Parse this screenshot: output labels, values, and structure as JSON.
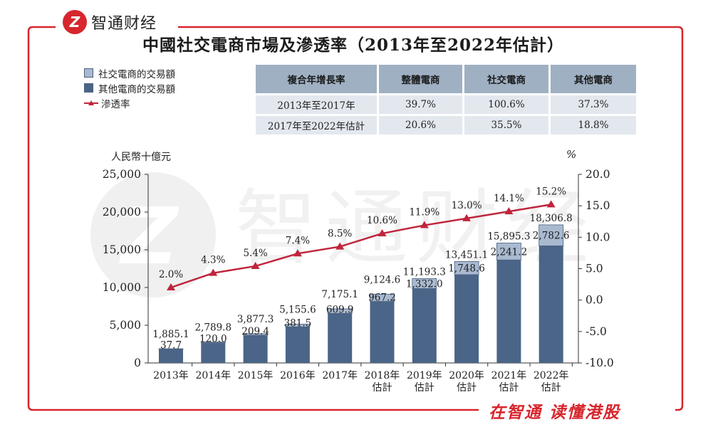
{
  "brand": {
    "logo_text": "Z",
    "name": "智通财经"
  },
  "title": "中國社交電商市場及滲透率（2013年至2022年估計）",
  "slogan": "在智通 读懂港股",
  "legend": [
    {
      "label": "社交電商的交易額",
      "color": "#a9bad0"
    },
    {
      "label": "其他電商的交易額",
      "color": "#4a6587"
    },
    {
      "label": "滲透率",
      "color": "#c0253c"
    }
  ],
  "cagr_table": {
    "headers": [
      "複合年增長率",
      "整體電商",
      "社交電商",
      "其他電商"
    ],
    "rows": [
      [
        "2013年至2017年",
        "39.7%",
        "100.6%",
        "37.3%"
      ],
      [
        "2017年至2022年估計",
        "20.6%",
        "35.5%",
        "18.8%"
      ]
    ]
  },
  "chart_data": {
    "type": "bar",
    "stacked": true,
    "title": "中國社交電商市場及滲透率（2013年至2022年估計）",
    "ylabel": "人民幣十億元",
    "y2label": "%",
    "ylim": [
      0,
      25000
    ],
    "y_ticks": [
      "0",
      "5,000",
      "10,000",
      "15,000",
      "20,000",
      "25,000"
    ],
    "y2lim": [
      -10,
      20
    ],
    "y2_ticks": [
      "-10.0",
      "-5.0",
      "0.0",
      "5.0",
      "10.0",
      "15.0",
      "20.0"
    ],
    "categories": [
      "2013年",
      "2014年",
      "2015年",
      "2016年",
      "2017年",
      "2018年\n估計",
      "2019年\n估計",
      "2020年\n估計",
      "2021年\n估計",
      "2022年\n估計"
    ],
    "series": [
      {
        "name": "其他電商的交易額",
        "type": "bar",
        "values": [
          1847.4,
          2669.8,
          3667.9,
          4774.1,
          6565.2,
          8157.4,
          9861.3,
          11702.5,
          13654.1,
          15524.2
        ]
      },
      {
        "name": "社交電商的交易額",
        "type": "bar",
        "values": [
          37.7,
          120.0,
          209.4,
          381.5,
          609.9,
          967.2,
          1332.0,
          1748.6,
          2241.2,
          2782.6
        ],
        "labels": [
          "37.7",
          "120.0",
          "209.4",
          "381.5",
          "609.9",
          "967.2",
          "1,332.0",
          "1,748.6",
          "2,241.2",
          "2,782.6"
        ]
      },
      {
        "name": "滲透率",
        "type": "line",
        "axis": "right",
        "values": [
          2.0,
          4.3,
          5.4,
          7.4,
          8.5,
          10.6,
          11.9,
          13.0,
          14.1,
          15.2
        ],
        "labels": [
          "2.0%",
          "4.3%",
          "5.4%",
          "7.4%",
          "8.5%",
          "10.6%",
          "11.9%",
          "13.0%",
          "14.1%",
          "15.2%"
        ]
      }
    ],
    "totals": [
      1885.1,
      2789.8,
      3877.3,
      5155.6,
      7175.1,
      9124.6,
      11193.3,
      13451.1,
      15895.3,
      18306.8
    ],
    "total_labels": [
      "1,885.1",
      "2,789.8",
      "3,877.3",
      "5,155.6",
      "7,175.1",
      "9,124.6",
      "11,193.3",
      "13,451.1",
      "15,895.3",
      "18,306.8"
    ]
  },
  "colors": {
    "frame": "#d7262d",
    "other_bar": "#4a6587",
    "social_bar": "#a9bad0",
    "line": "#c0253c",
    "watermark": "#dcdcdc"
  }
}
